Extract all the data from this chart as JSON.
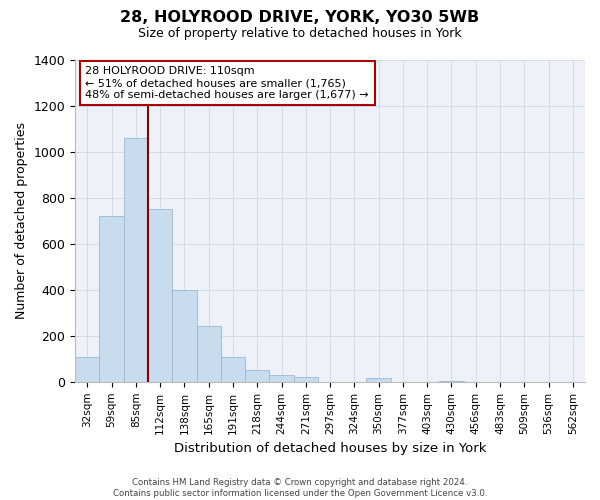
{
  "title": "28, HOLYROOD DRIVE, YORK, YO30 5WB",
  "subtitle": "Size of property relative to detached houses in York",
  "xlabel": "Distribution of detached houses by size in York",
  "ylabel": "Number of detached properties",
  "bin_labels": [
    "32sqm",
    "59sqm",
    "85sqm",
    "112sqm",
    "138sqm",
    "165sqm",
    "191sqm",
    "218sqm",
    "244sqm",
    "271sqm",
    "297sqm",
    "324sqm",
    "350sqm",
    "377sqm",
    "403sqm",
    "430sqm",
    "456sqm",
    "483sqm",
    "509sqm",
    "536sqm",
    "562sqm"
  ],
  "bar_values": [
    110,
    720,
    1060,
    750,
    400,
    245,
    110,
    50,
    28,
    22,
    0,
    0,
    15,
    0,
    0,
    5,
    0,
    0,
    0,
    0,
    0
  ],
  "bar_color": "#c9dced",
  "bar_edge_color": "#9ab8d4",
  "vline_index": 3,
  "vline_color": "#8b0000",
  "ylim": [
    0,
    1400
  ],
  "yticks": [
    0,
    200,
    400,
    600,
    800,
    1000,
    1200,
    1400
  ],
  "annotation_title": "28 HOLYROOD DRIVE: 110sqm",
  "annotation_line1": "← 51% of detached houses are smaller (1,765)",
  "annotation_line2": "48% of semi-detached houses are larger (1,677) →",
  "annotation_box_facecolor": "#ffffff",
  "annotation_box_edgecolor": "#aa0000",
  "footer_line1": "Contains HM Land Registry data © Crown copyright and database right 2024.",
  "footer_line2": "Contains public sector information licensed under the Open Government Licence v3.0.",
  "grid_color": "#d0dce8",
  "background_color": "#eef2f8"
}
